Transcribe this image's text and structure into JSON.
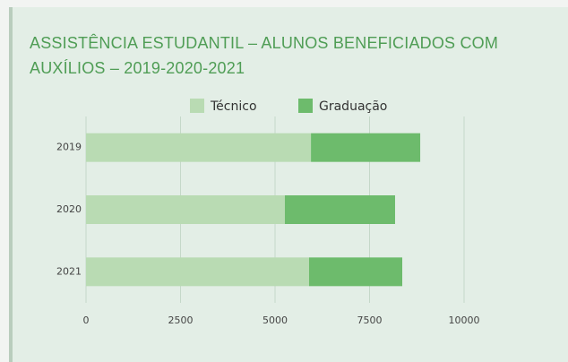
{
  "chart_data": {
    "type": "stacked_barh",
    "title": "ASSISTÊNCIA ESTUDANTIL – ALUNOS BENEFICIADOS COM AUXÍLIOS – 2019-2020-2021",
    "categories": [
      "2019",
      "2020",
      "2021"
    ],
    "series": [
      {
        "name": "Técnico",
        "color": "#b9dbb3",
        "values": [
          5950,
          5260,
          5900
        ]
      },
      {
        "name": "Graduação",
        "color": "#6dbb6c",
        "values": [
          2890,
          2915,
          2465
        ]
      }
    ],
    "xlim": [
      0,
      10000
    ],
    "xticks": [
      0,
      2500,
      5000,
      7500,
      10000
    ],
    "grid": true,
    "legend": "top"
  }
}
